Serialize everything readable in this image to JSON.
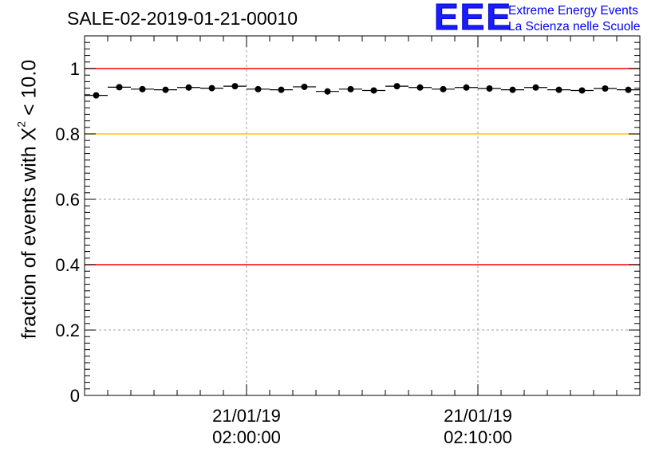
{
  "header": {
    "title": "SALE-02-2019-01-21-00010",
    "logo_mark": "EEE",
    "logo_line1": "Extreme Energy Events",
    "logo_line2": "La Scienza nelle Scuole"
  },
  "chart_data": {
    "type": "scatter",
    "title": "SALE-02-2019-01-21-00010",
    "xlabel": "",
    "ylabel_prefix": "fraction of events with ",
    "ylabel_symbol": "X",
    "ylabel_sup": "2",
    "ylabel_suffix": " < 10.0",
    "ylim": [
      0,
      1.1
    ],
    "yticks": [
      0,
      0.2,
      0.4,
      0.6,
      0.8,
      1
    ],
    "ytick_labels": [
      "0",
      "0.2",
      "0.4",
      "0.6",
      "0.8",
      "1"
    ],
    "x_unit": "minutes after 01:53:00",
    "xlim": [
      0,
      24
    ],
    "xticks": [
      {
        "x": 7,
        "date": "21/01/19",
        "time": "02:00:00"
      },
      {
        "x": 17,
        "date": "21/01/19",
        "time": "02:10:00"
      }
    ],
    "grid": true,
    "reference_lines": [
      {
        "y": 1.0,
        "color": "#ff0000"
      },
      {
        "y": 0.8,
        "color": "#ffc800"
      },
      {
        "y": 0.4,
        "color": "#ff0000"
      }
    ],
    "marker_color": "#000000",
    "x": [
      0.5,
      1.5,
      2.5,
      3.5,
      4.5,
      5.5,
      6.5,
      7.5,
      8.5,
      9.5,
      10.5,
      11.5,
      12.5,
      13.5,
      14.5,
      15.5,
      16.5,
      17.5,
      18.5,
      19.5,
      20.5,
      21.5,
      22.5,
      23.5
    ],
    "values": [
      0.918,
      0.943,
      0.937,
      0.935,
      0.942,
      0.94,
      0.946,
      0.937,
      0.935,
      0.944,
      0.93,
      0.937,
      0.933,
      0.946,
      0.942,
      0.937,
      0.942,
      0.939,
      0.935,
      0.942,
      0.935,
      0.933,
      0.939,
      0.935
    ]
  }
}
